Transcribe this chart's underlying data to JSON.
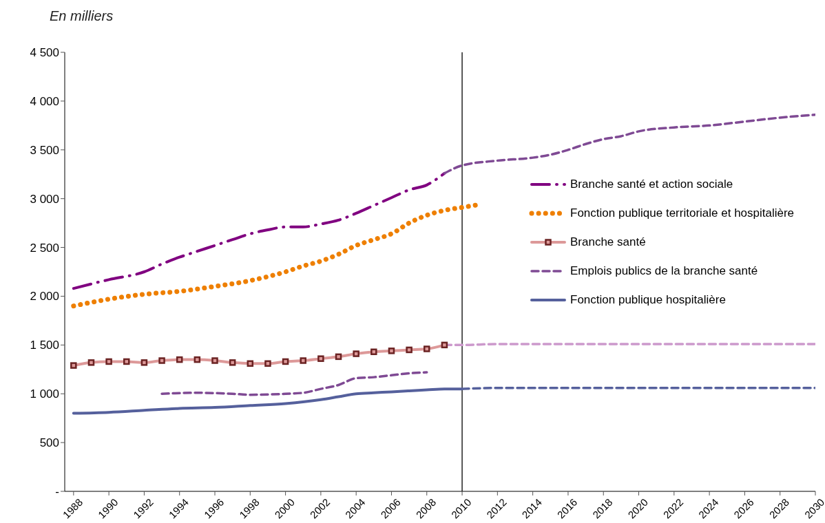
{
  "chart_data": {
    "type": "line",
    "ylabel": "En milliers",
    "xlim": [
      1987.5,
      2030
    ],
    "xticks": [
      1988,
      1990,
      1992,
      1994,
      1996,
      1998,
      2000,
      2002,
      2004,
      2006,
      2008,
      2010,
      2012,
      2014,
      2016,
      2018,
      2020,
      2022,
      2024,
      2026,
      2028,
      2030
    ],
    "ylim": [
      0,
      4500
    ],
    "yticks": [
      {
        "value": 0,
        "label": "-"
      },
      500,
      {
        "value": 1000,
        "label": "1 000"
      },
      {
        "value": 1500,
        "label": "1 500"
      },
      {
        "value": 2000,
        "label": "2 000"
      },
      {
        "value": 2500,
        "label": "2 500"
      },
      {
        "value": 3000,
        "label": "3 000"
      },
      {
        "value": 3500,
        "label": "3 500"
      },
      {
        "value": 4000,
        "label": "4 000"
      },
      {
        "value": 4500,
        "label": "4 500"
      }
    ],
    "grid": false,
    "legend": "right",
    "ref_lines": [
      {
        "axis": "x",
        "value": 2010,
        "color": "#000000"
      }
    ],
    "series": [
      {
        "name": "Branche santé et action sociale",
        "color": "#800080",
        "line_style": "dashdot",
        "x": [
          1988,
          1990,
          1992,
          1993,
          1994,
          1995,
          1996,
          1997,
          1998,
          1999,
          2000,
          2001,
          2002,
          2003,
          2004,
          2005,
          2006,
          2007,
          2008,
          2009
        ],
        "values": [
          2080,
          2170,
          2250,
          2330,
          2400,
          2460,
          2520,
          2580,
          2640,
          2680,
          2710,
          2710,
          2740,
          2780,
          2850,
          2930,
          3010,
          3090,
          3140,
          3260
        ]
      },
      {
        "name": "Fonction publique territoriale et hospitalière",
        "color": "#ee7f00",
        "line_style": "dotted",
        "x": [
          1988,
          1990,
          1992,
          1994,
          1996,
          1998,
          2000,
          2001,
          2002,
          2003,
          2004,
          2005,
          2006,
          2007,
          2008,
          2009,
          2010,
          2011
        ],
        "values": [
          1900,
          1970,
          2020,
          2050,
          2100,
          2160,
          2250,
          2310,
          2360,
          2430,
          2520,
          2580,
          2640,
          2750,
          2830,
          2880,
          2910,
          2940
        ]
      },
      {
        "name": "Branche santé",
        "color": "#dd9999",
        "line_style": "solid",
        "marker": "square",
        "x": [
          1988,
          1989,
          1990,
          1991,
          1992,
          1993,
          1994,
          1995,
          1996,
          1997,
          1998,
          1999,
          2000,
          2001,
          2002,
          2003,
          2004,
          2005,
          2006,
          2007,
          2008,
          2009
        ],
        "values": [
          1290,
          1320,
          1330,
          1330,
          1320,
          1340,
          1350,
          1350,
          1340,
          1320,
          1310,
          1310,
          1330,
          1340,
          1360,
          1380,
          1410,
          1430,
          1440,
          1450,
          1460,
          1500
        ]
      },
      {
        "name": "Emplois publics de la branche santé",
        "color": "#7f4a94",
        "line_style": "dashed",
        "x": [
          1993,
          1995,
          1997,
          1998,
          2000,
          2001,
          2002,
          2003,
          2004,
          2005,
          2006,
          2007,
          2008
        ],
        "values": [
          1000,
          1010,
          1000,
          990,
          1000,
          1010,
          1050,
          1090,
          1160,
          1170,
          1190,
          1210,
          1220
        ]
      },
      {
        "name": "Fonction publique hospitalière",
        "color": "#55609c",
        "line_style": "solid",
        "x": [
          1988,
          1990,
          1992,
          1994,
          1996,
          1998,
          2000,
          2002,
          2003,
          2004,
          2005,
          2006,
          2007,
          2008,
          2009,
          2010
        ],
        "values": [
          800,
          810,
          830,
          850,
          860,
          880,
          900,
          940,
          970,
          1000,
          1010,
          1020,
          1030,
          1040,
          1050,
          1050
        ]
      },
      {
        "color": "#7f4a94",
        "line_style": "dashed",
        "x": [
          2009,
          2010,
          2012,
          2014,
          2015,
          2016,
          2017,
          2018,
          2019,
          2020,
          2022,
          2024,
          2026,
          2028,
          2030
        ],
        "values": [
          3260,
          3340,
          3390,
          3420,
          3450,
          3500,
          3560,
          3610,
          3640,
          3690,
          3730,
          3750,
          3790,
          3830,
          3860
        ]
      },
      {
        "color": "#cc99cc",
        "line_style": "dashed",
        "x": [
          2009,
          2010,
          2012,
          2015,
          2020,
          2030
        ],
        "values": [
          1500,
          1500,
          1510,
          1510,
          1510,
          1510
        ]
      },
      {
        "color": "#55609c",
        "line_style": "dashed",
        "x": [
          2010,
          2012,
          2015,
          2020,
          2030
        ],
        "values": [
          1050,
          1060,
          1060,
          1060,
          1060
        ]
      }
    ]
  }
}
